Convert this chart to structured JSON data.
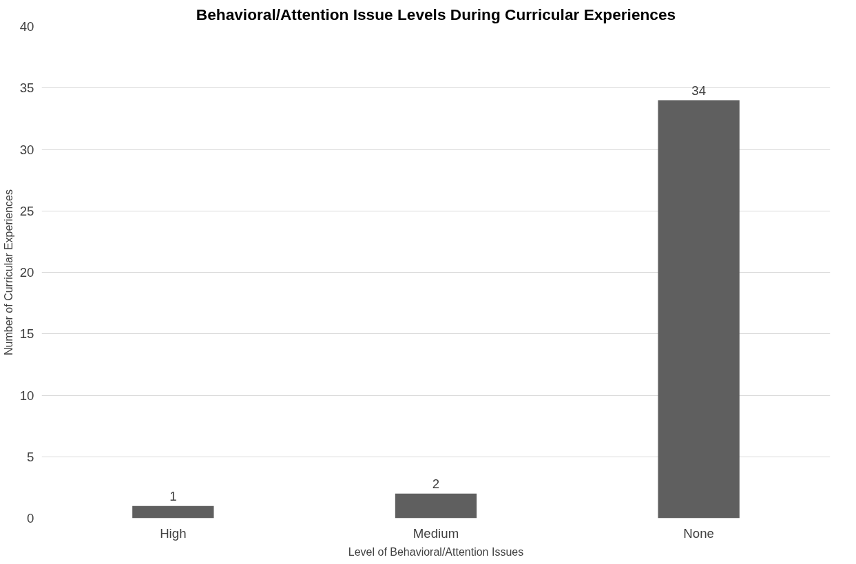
{
  "chart_data": {
    "type": "bar",
    "title": "Behavioral/Attention Issue Levels During Curricular Experiences",
    "xlabel": "Level of Behavioral/Attention Issues",
    "ylabel": "Number of Curricular Experiences",
    "categories": [
      "High",
      "Medium",
      "None"
    ],
    "values": [
      1,
      2,
      34
    ],
    "color": "#5f5f5f",
    "ylim": [
      0,
      40
    ],
    "yticks": [
      0,
      5,
      10,
      15,
      20,
      25,
      30,
      35,
      40
    ],
    "grid": "y",
    "data_labels": true
  }
}
